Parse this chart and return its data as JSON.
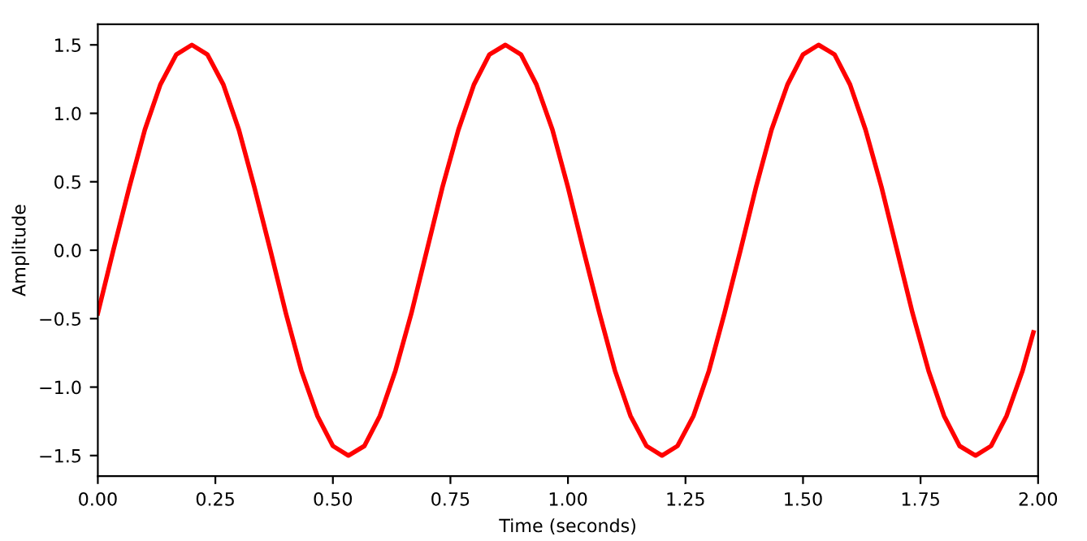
{
  "chart_data": {
    "type": "line",
    "xlabel": "Time (seconds)",
    "ylabel": "Amplitude",
    "x": [
      0,
      0.033,
      0.067,
      0.1,
      0.133,
      0.167,
      0.2,
      0.233,
      0.267,
      0.3,
      0.333,
      0.367,
      0.4,
      0.433,
      0.467,
      0.5,
      0.533,
      0.567,
      0.6,
      0.633,
      0.667,
      0.7,
      0.733,
      0.767,
      0.8,
      0.833,
      0.867,
      0.9,
      0.933,
      0.967,
      1.0,
      1.033,
      1.067,
      1.1,
      1.133,
      1.167,
      1.2,
      1.233,
      1.267,
      1.3,
      1.333,
      1.367,
      1.4,
      1.433,
      1.467,
      1.5,
      1.533,
      1.567,
      1.6,
      1.633,
      1.667,
      1.7,
      1.733,
      1.767,
      1.8,
      1.833,
      1.867,
      1.9,
      1.933,
      1.967,
      1.99
    ],
    "series": [
      {
        "color": "#ff0000",
        "values": [
          -0.46,
          0,
          0.46,
          0.88,
          1.21,
          1.43,
          1.5,
          1.43,
          1.21,
          0.88,
          0.46,
          0,
          -0.46,
          -0.88,
          -1.21,
          -1.43,
          -1.5,
          -1.43,
          -1.21,
          -0.88,
          -0.46,
          0,
          0.46,
          0.88,
          1.21,
          1.43,
          1.5,
          1.43,
          1.21,
          0.88,
          0.46,
          0,
          -0.46,
          -0.88,
          -1.21,
          -1.43,
          -1.5,
          -1.43,
          -1.21,
          -0.88,
          -0.46,
          0,
          0.46,
          0.88,
          1.21,
          1.43,
          1.5,
          1.43,
          1.21,
          0.88,
          0.46,
          0,
          -0.46,
          -0.88,
          -1.21,
          -1.43,
          -1.5,
          -1.43,
          -1.21,
          -0.88,
          -0.6
        ]
      }
    ],
    "xlim": [
      0,
      2
    ],
    "ylim": [
      -1.65,
      1.65
    ],
    "xticks": [
      {
        "value": 0,
        "label": "0.00"
      },
      {
        "value": 0.25,
        "label": "0.25"
      },
      {
        "value": 0.5,
        "label": "0.50"
      },
      {
        "value": 0.75,
        "label": "0.75"
      },
      {
        "value": 1,
        "label": "1.00"
      },
      {
        "value": 1.25,
        "label": "1.25"
      },
      {
        "value": 1.5,
        "label": "1.50"
      },
      {
        "value": 1.75,
        "label": "1.75"
      },
      {
        "value": 2,
        "label": "2.00"
      }
    ],
    "yticks": [
      {
        "value": -1.5,
        "label": "−1.5"
      },
      {
        "value": -1,
        "label": "−1.0"
      },
      {
        "value": -0.5,
        "label": "−0.5"
      },
      {
        "value": 0,
        "label": "0.0"
      },
      {
        "value": 0.5,
        "label": "0.5"
      },
      {
        "value": 1,
        "label": "1.0"
      },
      {
        "value": 1.5,
        "label": "1.5"
      }
    ],
    "grid": false,
    "line_style": "solid"
  }
}
